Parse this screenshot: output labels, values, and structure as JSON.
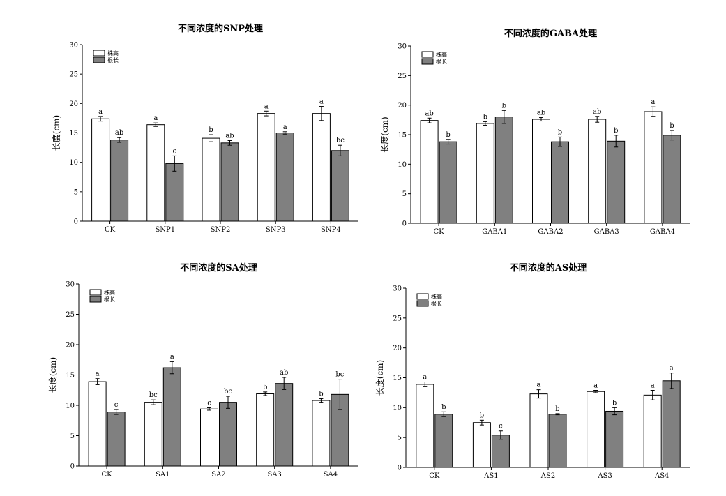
{
  "chart_data": [
    {
      "type": "bar",
      "title": "不同浓度的SNP处理",
      "ylabel": "长度(cm)",
      "ylim": [
        0,
        30
      ],
      "yticks": [
        0,
        5,
        10,
        15,
        20,
        25,
        30
      ],
      "categories": [
        "CK",
        "SNP1",
        "SNP2",
        "SNP3",
        "SNP4"
      ],
      "series": [
        {
          "name": "株高",
          "color": "#ffffff",
          "values": [
            17.4,
            16.4,
            14.1,
            18.3,
            18.3
          ],
          "errors": [
            0.4,
            0.3,
            0.6,
            0.4,
            1.2
          ],
          "labels": [
            "a",
            "a",
            "b",
            "a",
            "a"
          ]
        },
        {
          "name": "根长",
          "color": "#808080",
          "values": [
            13.8,
            9.8,
            13.3,
            15.0,
            12.0
          ],
          "errors": [
            0.4,
            1.3,
            0.4,
            0.2,
            0.9
          ],
          "labels": [
            "ab",
            "c",
            "ab",
            "a",
            "bc"
          ]
        }
      ],
      "legend": "top-left",
      "grid": false
    },
    {
      "type": "bar",
      "title": "不同浓度的GABA处理",
      "ylabel": "长度(cm)",
      "ylim": [
        0,
        30
      ],
      "yticks": [
        0,
        5,
        10,
        15,
        20,
        25,
        30
      ],
      "categories": [
        "CK",
        "GABA1",
        "GABA2",
        "GABA3",
        "GABA4"
      ],
      "series": [
        {
          "name": "株高",
          "color": "#ffffff",
          "values": [
            17.4,
            16.9,
            17.6,
            17.6,
            18.9
          ],
          "errors": [
            0.4,
            0.3,
            0.3,
            0.5,
            0.8
          ],
          "labels": [
            "ab",
            "b",
            "ab",
            "ab",
            "a"
          ]
        },
        {
          "name": "根长",
          "color": "#808080",
          "values": [
            13.8,
            18.0,
            13.8,
            13.9,
            14.9
          ],
          "errors": [
            0.4,
            1.1,
            0.8,
            1.0,
            0.8
          ],
          "labels": [
            "b",
            "b",
            "b",
            "b",
            "b"
          ]
        }
      ],
      "legend": "top-left",
      "grid": false
    },
    {
      "type": "bar",
      "title": "不同浓度的SA处理",
      "ylabel": "长度(cm)",
      "ylim": [
        0,
        30
      ],
      "yticks": [
        0,
        5,
        10,
        15,
        20,
        25,
        30
      ],
      "categories": [
        "CK",
        "SA1",
        "SA2",
        "SA3",
        "SA4"
      ],
      "series": [
        {
          "name": "株高",
          "color": "#ffffff",
          "values": [
            13.9,
            10.5,
            9.4,
            11.9,
            10.8
          ],
          "errors": [
            0.5,
            0.4,
            0.2,
            0.3,
            0.3
          ],
          "labels": [
            "a",
            "bc",
            "c",
            "b",
            "b"
          ]
        },
        {
          "name": "根长",
          "color": "#808080",
          "values": [
            8.9,
            16.2,
            10.5,
            13.6,
            11.8
          ],
          "errors": [
            0.4,
            1.0,
            1.0,
            1.0,
            2.5
          ],
          "labels": [
            "c",
            "a",
            "bc",
            "ab",
            "bc"
          ]
        }
      ],
      "legend": "top-left",
      "grid": false
    },
    {
      "type": "bar",
      "title": "不同浓度的AS处理",
      "ylabel": "长度(cm)",
      "ylim": [
        0,
        30
      ],
      "yticks": [
        0,
        5,
        10,
        15,
        20,
        25,
        30
      ],
      "categories": [
        "CK",
        "AS1",
        "AS2",
        "AS3",
        "AS4"
      ],
      "series": [
        {
          "name": "株高",
          "color": "#ffffff",
          "values": [
            13.9,
            7.5,
            12.3,
            12.7,
            12.1
          ],
          "errors": [
            0.4,
            0.4,
            0.7,
            0.2,
            0.8
          ],
          "labels": [
            "a",
            "b",
            "a",
            "a",
            "a"
          ]
        },
        {
          "name": "根长",
          "color": "#808080",
          "values": [
            8.9,
            5.4,
            8.9,
            9.4,
            14.5
          ],
          "errors": [
            0.4,
            0.7,
            0.1,
            0.6,
            1.3
          ],
          "labels": [
            "b",
            "c",
            "b",
            "b",
            "a"
          ]
        }
      ],
      "legend": "top-left",
      "grid": false
    }
  ]
}
